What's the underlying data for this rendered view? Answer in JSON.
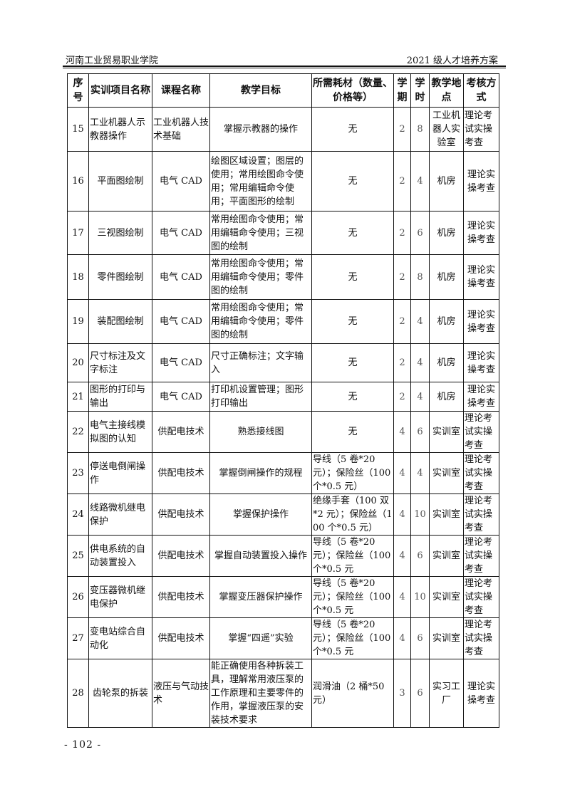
{
  "header": {
    "institution": "河南工业贸易职业学院",
    "document": "2021 级人才培养方案"
  },
  "table": {
    "columns": [
      "序号",
      "实训项目名称",
      "课程名称",
      "教学目标",
      "所需耗材（数量、价格等）",
      "学期",
      "学时",
      "教学地点",
      "考核方式"
    ],
    "rows": [
      [
        "15",
        "工业机器人示教器操作",
        "工业机器人技术基础",
        "掌握示教器的操作",
        "无",
        "2",
        "8",
        "工业机器人实验室",
        "理论考试实操考查"
      ],
      [
        "16",
        "平面图绘制",
        "电气 CAD",
        "绘图区域设置；图层的使用；常用绘图命令使用；常用编辑命令使用；平面图形的绘制",
        "无",
        "2",
        "4",
        "机房",
        "理论实操考查"
      ],
      [
        "17",
        "三视图绘制",
        "电气 CAD",
        "常用绘图命令使用；常用编辑命令使用；三视图的绘制",
        "无",
        "2",
        "6",
        "机房",
        "理论实操考查"
      ],
      [
        "18",
        "零件图绘制",
        "电气 CAD",
        "常用绘图命令使用；常用编辑命令使用；零件图的绘制",
        "无",
        "2",
        "8",
        "机房",
        "理论实操考查"
      ],
      [
        "19",
        "装配图绘制",
        "电气 CAD",
        "常用绘图命令使用；常用编辑命令使用；零件图的绘制",
        "无",
        "2",
        "4",
        "机房",
        "理论实操考查"
      ],
      [
        "20",
        "尺寸标注及文字标注",
        "电气 CAD",
        "尺寸正确标注；文字输入",
        "无",
        "2",
        "4",
        "机房",
        "理论实操考查"
      ],
      [
        "21",
        "图形的打印与输出",
        "电气 CAD",
        "打印机设置管理；图形打印输出",
        "无",
        "2",
        "4",
        "机房",
        "理论实操考查"
      ],
      [
        "22",
        "电气主接线模拟图的认知",
        "供配电技术",
        "熟悉接线图",
        "无",
        "4",
        "6",
        "实训室",
        "理论考试实操考查"
      ],
      [
        "23",
        "停送电倒闸操作",
        "供配电技术",
        "掌握倒闸操作的规程",
        "导线（5 卷*20 元）；保险丝（100 个*0.5 元）",
        "4",
        "4",
        "实训室",
        "理论考试实操考查"
      ],
      [
        "24",
        "线路微机继电保护",
        "供配电技术",
        "掌握保护操作",
        "绝缘手套（100 双*2 元）；保险丝（100 个*0.5 元）",
        "4",
        "10",
        "实训室",
        "理论考试实操考查"
      ],
      [
        "25",
        "供电系统的自动装置投入",
        "供配电技术",
        "掌握自动装置投入操作",
        "导线（5 卷*20 元）；保险丝（100 个*0.5 元",
        "4",
        "6",
        "实训室",
        "理论考试实操考查"
      ],
      [
        "26",
        "变压器微机继电保护",
        "供配电技术",
        "掌握变压器保护操作",
        "导线（5 卷*20 元）；保险丝（100 个*0.5 元",
        "4",
        "10",
        "实训室",
        "理论考试实操考查"
      ],
      [
        "27",
        "变电站综合自动化",
        "供配电技术",
        "掌握“四遥”实验",
        "导线（5 卷*20 元）；保险丝（100 个*0.5 元",
        "4",
        "6",
        "实训室",
        "理论考试实操考查"
      ],
      [
        "28",
        "齿轮泵的拆装",
        "液压与气动技术",
        "能正确使用各种拆装工具，理解常用液压泵的工作原理和主要零件的作用，掌握液压泵的安装技术要求",
        "润滑油（2 桶*50 元）",
        "3",
        "6",
        "实习工厂",
        "理论实操考查"
      ]
    ]
  },
  "footer": {
    "page": "- 102 -"
  }
}
